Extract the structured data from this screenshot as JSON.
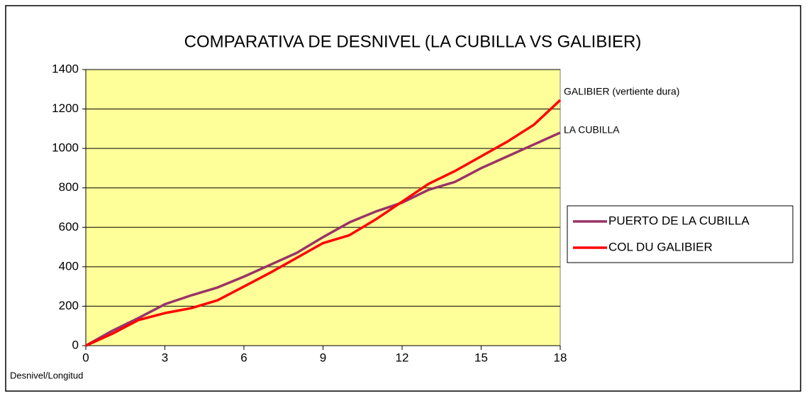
{
  "chart_data": {
    "type": "line",
    "title": "COMPARATIVA DE DESNIVEL (LA CUBILLA VS GALIBIER)",
    "x_label": "Desnivel/Longitud",
    "x": [
      0,
      1,
      2,
      3,
      4,
      5,
      6,
      7,
      8,
      9,
      10,
      11,
      12,
      13,
      14,
      15,
      16,
      17,
      18
    ],
    "series": [
      {
        "name": "PUERTO DE LA CUBILLA",
        "color": "#993366",
        "values": [
          0,
          75,
          140,
          210,
          255,
          295,
          350,
          410,
          470,
          550,
          625,
          680,
          725,
          790,
          830,
          900,
          960,
          1020,
          1080
        ]
      },
      {
        "name": "COL DU GALIBIER",
        "color": "#ff0000",
        "values": [
          0,
          60,
          130,
          165,
          190,
          230,
          300,
          370,
          445,
          520,
          560,
          640,
          730,
          820,
          885,
          960,
          1035,
          1120,
          1245
        ]
      }
    ],
    "annotations": [
      "GALIBIER (vertiente dura)",
      "LA CUBILLA"
    ],
    "xlim": [
      0,
      18
    ],
    "xticks": [
      0,
      3,
      6,
      9,
      12,
      15,
      18
    ],
    "ylim": [
      0,
      1400
    ],
    "yticks": [
      0,
      200,
      400,
      600,
      800,
      1000,
      1200,
      1400
    ],
    "grid": true,
    "legend": "right",
    "plot_background": "#ffff99"
  }
}
